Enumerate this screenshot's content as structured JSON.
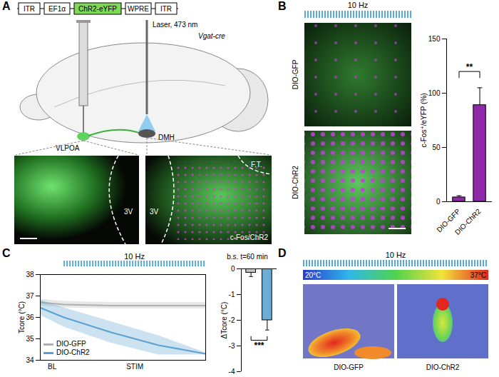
{
  "figure": {
    "panel_letters": [
      "A",
      "B",
      "C",
      "D"
    ],
    "A": {
      "construct": [
        "ITR",
        "EF1α",
        "ChR2-eYFP",
        "WPRE",
        "ITR"
      ],
      "laser_label": "Laser, 473 nm",
      "regions": [
        "VLPOA",
        "DMH"
      ],
      "mouse_line": "Vgat-cre",
      "image_left_labels": [
        "3V"
      ],
      "image_right_labels": [
        "3V",
        "F.T.",
        "c-Fos/ChR2"
      ]
    },
    "B": {
      "stim_label": "10 Hz",
      "image_labels": [
        "DIO-GFP",
        "DIO-ChR2"
      ]
    },
    "C": {
      "stim_label": "10 Hz",
      "x_annotations": [
        "BL",
        "STIM"
      ],
      "stim_range": [
        0,
        60
      ]
    },
    "D": {
      "stim_label": "10 Hz",
      "colorbar": {
        "range": [
          20,
          37
        ],
        "ticks": [
          {
            "value": 20,
            "label": "20°C"
          },
          {
            "value": 37,
            "label": "37°C"
          }
        ]
      },
      "image_labels": [
        "DIO-GFP",
        "DIO-ChR2"
      ]
    }
  },
  "chart_data": [
    {
      "type": "bar",
      "categories": [
        "DIO-GFP",
        "DIO-ChR2"
      ],
      "values": [
        4,
        89
      ],
      "errors": [
        1.5,
        16
      ],
      "color": "#8e2aa8",
      "ylabel": "c-Fos⁺/eYFP (%)",
      "ylim": [
        0,
        150
      ],
      "yticks": [
        0,
        50,
        100,
        150
      ],
      "grid": false,
      "significance": "**"
    },
    {
      "type": "line",
      "ylabel": "Tcore (°C)",
      "x": [
        -10,
        0,
        20,
        40,
        60
      ],
      "xlim": [
        -10,
        60
      ],
      "ylim": [
        34,
        38
      ],
      "yticks": [
        34,
        35,
        36,
        37,
        38
      ],
      "tick_labels": "y",
      "grid": false,
      "legend": "lower left",
      "series": [
        {
          "name": "DIO-GFP",
          "color": "#b0b0b0",
          "values": [
            36.7,
            36.6,
            36.55,
            36.55,
            36.55
          ],
          "errors": [
            0.15,
            0.15,
            0.15,
            0.15,
            0.15
          ]
        },
        {
          "name": "DIO-ChR2",
          "color": "#5aa0d0",
          "values": [
            36.45,
            36.0,
            35.3,
            34.7,
            34.3
          ],
          "errors": [
            0.35,
            0.45,
            0.5,
            0.45,
            0.05
          ]
        }
      ]
    },
    {
      "type": "bar",
      "title": "b.s. t=60 min",
      "categories": [
        null,
        null
      ],
      "values": [
        -0.15,
        -2.0
      ],
      "errors": [
        0.15,
        0.38
      ],
      "colors": [
        "#c4c4c4",
        "#6aaed6"
      ],
      "ylabel": "ΔTcore (°C)",
      "ylim": [
        -4,
        0
      ],
      "yticks": [
        0,
        -1,
        -2,
        -3,
        -4
      ],
      "tick_labels": "y",
      "grid": false,
      "significance": "***"
    }
  ]
}
